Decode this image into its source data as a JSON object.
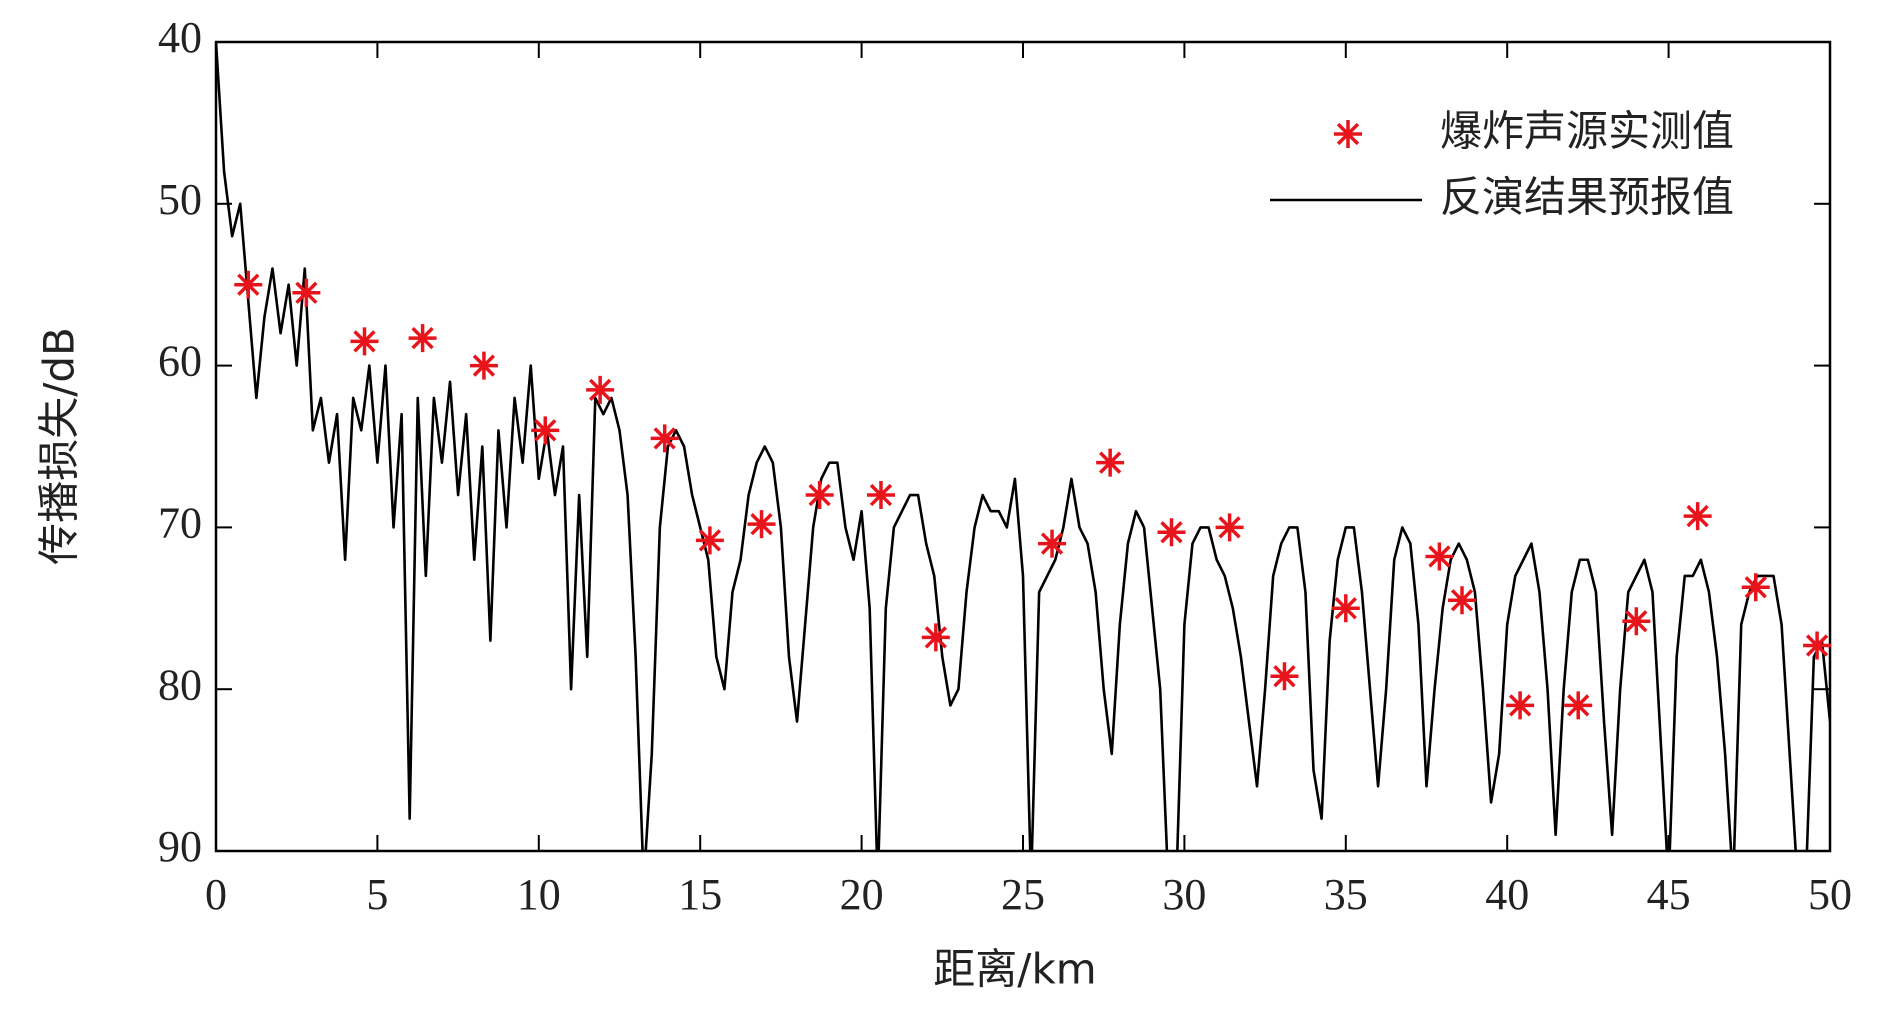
{
  "chart_data": {
    "type": "line",
    "xlabel": "距离/km",
    "ylabel": "传播损失/dB",
    "xlim": [
      0,
      50
    ],
    "xticks": [
      0,
      5,
      10,
      15,
      20,
      25,
      30,
      35,
      40,
      45,
      50
    ],
    "ylim": [
      40,
      90
    ],
    "yticks": [
      40,
      50,
      60,
      70,
      80,
      90
    ],
    "y_inverted": true,
    "legend": "upper right",
    "series": [
      {
        "name": "爆炸声源实测值",
        "type": "scatter",
        "marker": "*",
        "color": "#e8141c",
        "x": [
          1.0,
          2.8,
          4.6,
          6.4,
          8.3,
          10.2,
          11.9,
          13.9,
          15.3,
          16.9,
          18.7,
          20.6,
          22.3,
          25.9,
          27.7,
          29.6,
          31.4,
          33.1,
          35.0,
          37.9,
          38.6,
          40.4,
          42.2,
          44.0,
          45.9,
          47.7,
          49.6
        ],
        "values": [
          55,
          55.5,
          58.5,
          58.3,
          60,
          64,
          61.5,
          64.5,
          70.8,
          69.8,
          68,
          68,
          76.8,
          71,
          66,
          70.3,
          70,
          79.2,
          75,
          71.8,
          74.5,
          81,
          81,
          75.8,
          69.3,
          73.7,
          77.3
        ]
      },
      {
        "name": "反演结果预报值",
        "type": "line",
        "color": "#000000",
        "x": [
          0,
          0.25,
          0.5,
          0.75,
          1,
          1.25,
          1.5,
          1.75,
          2,
          2.25,
          2.5,
          2.75,
          3,
          3.25,
          3.5,
          3.75,
          4,
          4.25,
          4.5,
          4.75,
          5,
          5.25,
          5.5,
          5.75,
          6,
          6.25,
          6.5,
          6.75,
          7,
          7.25,
          7.5,
          7.75,
          8,
          8.25,
          8.5,
          8.75,
          9,
          9.25,
          9.5,
          9.75,
          10,
          10.25,
          10.5,
          10.75,
          11,
          11.25,
          11.5,
          11.75,
          12,
          12.25,
          12.5,
          12.75,
          13,
          13.25,
          13.5,
          13.75,
          14,
          14.25,
          14.5,
          14.75,
          15,
          15.25,
          15.5,
          15.75,
          16,
          16.25,
          16.5,
          16.75,
          17,
          17.25,
          17.5,
          17.75,
          18,
          18.25,
          18.5,
          18.75,
          19,
          19.25,
          19.5,
          19.75,
          20,
          20.25,
          20.5,
          20.75,
          21,
          21.25,
          21.5,
          21.75,
          22,
          22.25,
          22.5,
          22.75,
          23,
          23.25,
          23.5,
          23.75,
          24,
          24.25,
          24.5,
          24.75,
          25,
          25.25,
          25.5,
          25.75,
          26,
          26.25,
          26.5,
          26.75,
          27,
          27.25,
          27.5,
          27.75,
          28,
          28.25,
          28.5,
          28.75,
          29,
          29.25,
          29.5,
          29.75,
          30,
          30.25,
          30.5,
          30.75,
          31,
          31.25,
          31.5,
          31.75,
          32,
          32.25,
          32.5,
          32.75,
          33,
          33.25,
          33.5,
          33.75,
          34,
          34.25,
          34.5,
          34.75,
          35,
          35.25,
          35.5,
          35.75,
          36,
          36.25,
          36.5,
          36.75,
          37,
          37.25,
          37.5,
          37.75,
          38,
          38.25,
          38.5,
          38.75,
          39,
          39.25,
          39.5,
          39.75,
          40,
          40.25,
          40.5,
          40.75,
          41,
          41.25,
          41.5,
          41.75,
          42,
          42.25,
          42.5,
          42.75,
          43,
          43.25,
          43.5,
          43.75,
          44,
          44.25,
          44.5,
          44.75,
          45,
          45.25,
          45.5,
          45.75,
          46,
          46.25,
          46.5,
          46.75,
          47,
          47.25,
          47.5,
          47.75,
          48,
          48.25,
          48.5,
          48.75,
          49,
          49.25,
          49.5,
          49.75,
          50
        ],
        "values": [
          40,
          48,
          52,
          50,
          56,
          62,
          57,
          54,
          58,
          55,
          60,
          54,
          64,
          62,
          66,
          63,
          72,
          62,
          64,
          60,
          66,
          60,
          70,
          63,
          88,
          62,
          73,
          62,
          66,
          61,
          68,
          63,
          72,
          65,
          77,
          64,
          70,
          62,
          66,
          60,
          67,
          64,
          68,
          65,
          80,
          68,
          78,
          62,
          63,
          62,
          64,
          68,
          78,
          92,
          84,
          70,
          65,
          64,
          65,
          68,
          70,
          72,
          78,
          80,
          74,
          72,
          68,
          66,
          65,
          66,
          70,
          78,
          82,
          76,
          70,
          67,
          66,
          66,
          70,
          72,
          69,
          75,
          92,
          75,
          70,
          69,
          68,
          68,
          71,
          73,
          78,
          81,
          80,
          74,
          70,
          68,
          69,
          69,
          70,
          67,
          73,
          92,
          74,
          73,
          72,
          70,
          67,
          70,
          71,
          74,
          80,
          84,
          76,
          71,
          69,
          70,
          75,
          80,
          92,
          92,
          76,
          71,
          70,
          70,
          72,
          73,
          75,
          78,
          82,
          86,
          80,
          73,
          71,
          70,
          70,
          74,
          85,
          88,
          77,
          72,
          70,
          70,
          74,
          80,
          86,
          80,
          72,
          70,
          71,
          76,
          86,
          80,
          75,
          72,
          71,
          72,
          74,
          80,
          87,
          84,
          76,
          73,
          72,
          71,
          74,
          80,
          89,
          80,
          74,
          72,
          72,
          74,
          82,
          89,
          80,
          74,
          73,
          72,
          74,
          83,
          92,
          78,
          73,
          73,
          72,
          74,
          78,
          84,
          92,
          76,
          74,
          73,
          73,
          73,
          76,
          84,
          92,
          92,
          78,
          77,
          82
        ]
      }
    ]
  }
}
